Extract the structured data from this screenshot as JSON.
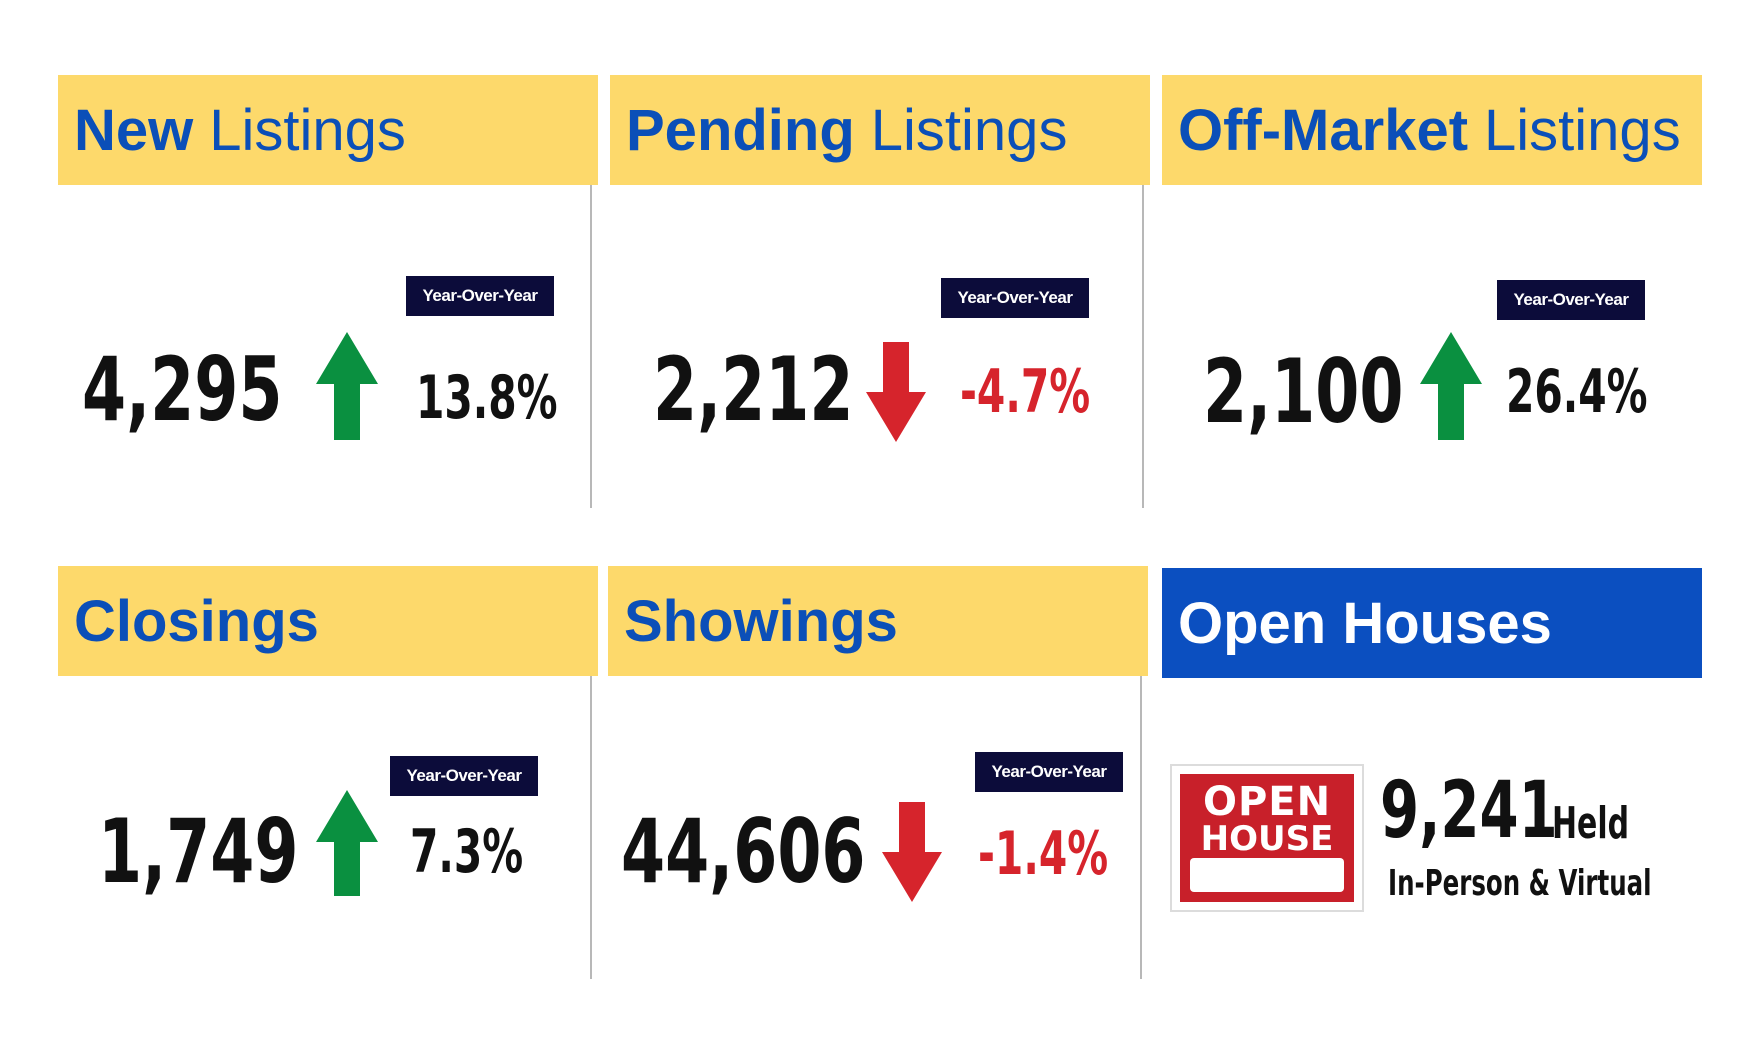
{
  "colors": {
    "header_yellow": "#fdd96b",
    "header_blue": "#0b4fc0",
    "title_blue": "#0b4fb8",
    "up_green": "#0a9040",
    "down_red": "#d6242c",
    "badge_navy": "#0c0c3a"
  },
  "cards": [
    {
      "title_bold": "New",
      "title_regular": "Listings",
      "value": "4,295",
      "change": "13.8%",
      "direction": "up",
      "badge": "Year-Over-Year"
    },
    {
      "title_bold": "Pending",
      "title_regular": "Listings",
      "value": "2,212",
      "change": "-4.7%",
      "direction": "down",
      "badge": "Year-Over-Year"
    },
    {
      "title_bold": "Off-Market",
      "title_regular": "Listings",
      "value": "2,100",
      "change": "26.4%",
      "direction": "up",
      "badge": "Year-Over-Year"
    },
    {
      "title_bold": "Closings",
      "value": "1,749",
      "change": "7.3%",
      "direction": "up",
      "badge": "Year-Over-Year"
    },
    {
      "title_bold": "Showings",
      "value": "44,606",
      "change": "-1.4%",
      "direction": "down",
      "badge": "Year-Over-Year"
    }
  ],
  "open_houses": {
    "title": "Open Houses",
    "sign_line1": "OPEN",
    "sign_line2": "HOUSE",
    "value": "9,241",
    "held": "Held",
    "subtitle": "In-Person & Virtual",
    "icon": "open-house-sign-icon"
  }
}
